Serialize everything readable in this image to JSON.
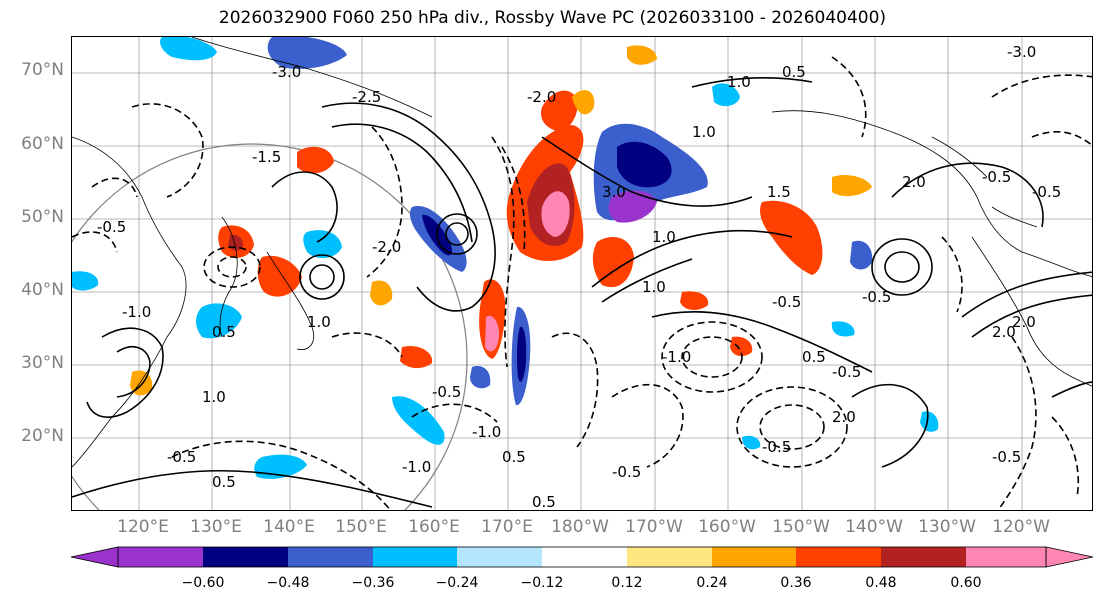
{
  "title": "2026032900 F060 250 hPa div., Rossby Wave PC (2026033100 - 2026040400)",
  "lat_labels": [
    "70°N",
    "60°N",
    "50°N",
    "40°N",
    "30°N",
    "20°N"
  ],
  "lon_labels": [
    "120°E",
    "130°E",
    "140°E",
    "150°E",
    "160°E",
    "170°E",
    "180°W",
    "170°W",
    "160°W",
    "150°W",
    "140°W",
    "130°W",
    "120°W"
  ],
  "colorbar": {
    "ticks": [
      "−0.60",
      "−0.48",
      "−0.36",
      "−0.24",
      "−0.12",
      "0.12",
      "0.24",
      "0.36",
      "0.48",
      "0.60"
    ],
    "colors": [
      "#9933cc",
      "#000080",
      "#3b5fcc",
      "#00bfff",
      "#b3e5fc",
      "#ffffff",
      "#ffe680",
      "#ffa500",
      "#ff4000",
      "#b22222",
      "#ff85b3"
    ]
  },
  "contour_labels": [
    "-0.5",
    "0.5",
    "-1.0",
    "1.0",
    "-1.5",
    "1.5",
    "-2.0",
    "2.0",
    "-2.5",
    "-3.0",
    "-0.5",
    "0.5",
    "-1.0",
    "1.0",
    "-0.5",
    "0.5",
    "2.0",
    "-2.0",
    "3.0",
    "-0.5",
    "1.0",
    "-0.5",
    "0.5",
    "-1.0",
    "1.0",
    "-0.5",
    "2.0",
    "-0.5",
    "-3.0",
    "1.0",
    "-0.5",
    "0.5",
    "-0.5",
    "2.0",
    "-1.0",
    "1.0",
    "-0.5",
    "0.5",
    "-0.5"
  ]
}
